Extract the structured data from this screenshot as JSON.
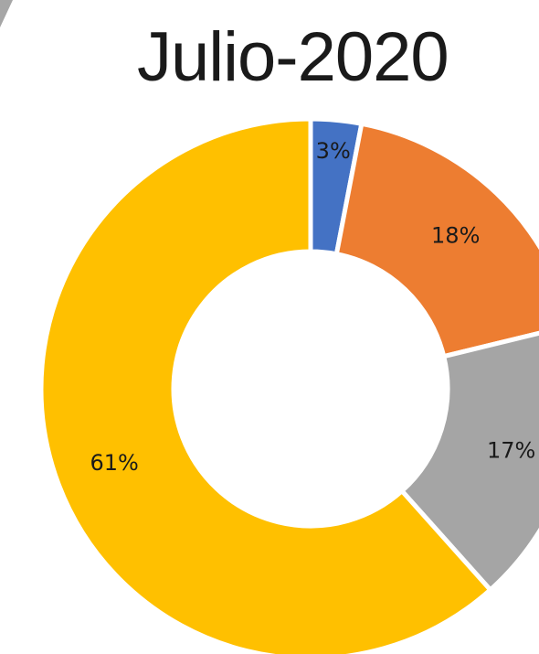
{
  "chart_data": {
    "type": "pie",
    "variant": "donut",
    "title": "Julio-2020",
    "slices": [
      {
        "label": "3%",
        "value": 3,
        "color": "#4472C4"
      },
      {
        "label": "18%",
        "value": 18,
        "color": "#ED7D31"
      },
      {
        "label": "17%",
        "value": 17,
        "color": "#A5A5A5"
      },
      {
        "label": "61%",
        "value": 61,
        "color": "#FFC000"
      }
    ],
    "start": "top",
    "direction": "clockwise",
    "slice_separator_color": "#ffffff",
    "legend": "none"
  },
  "decor": {
    "corner_color": "#A6A6A6"
  }
}
